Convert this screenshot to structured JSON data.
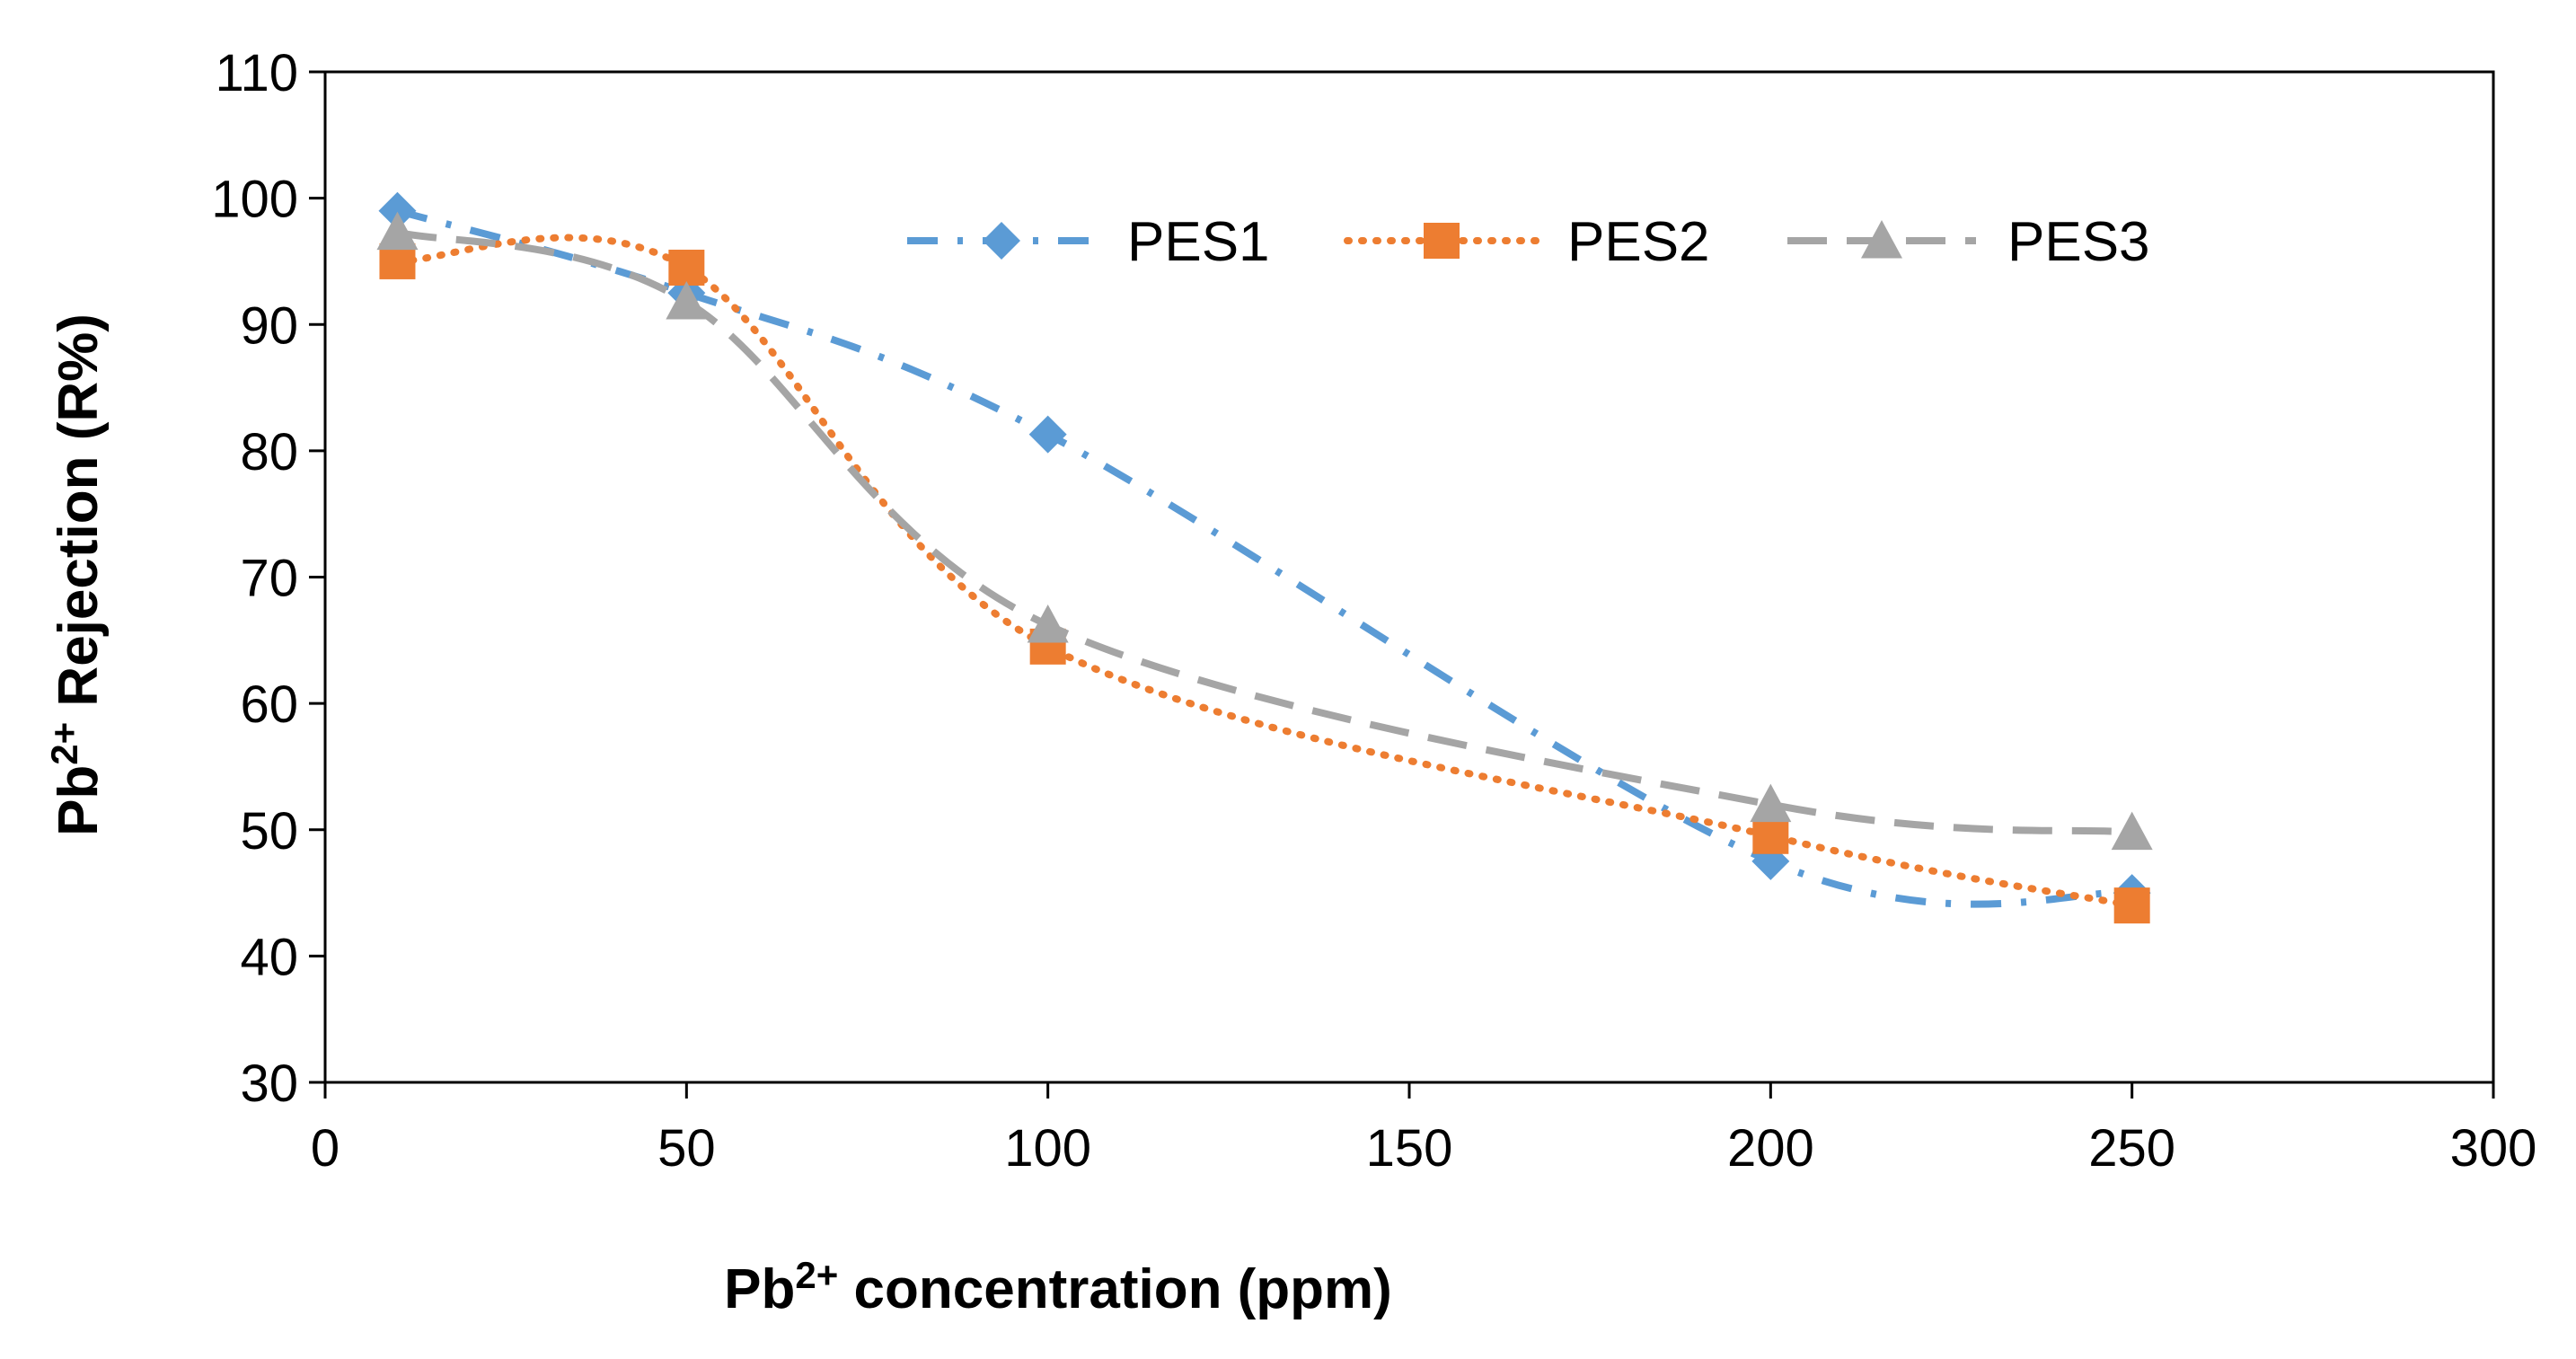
{
  "chart_data": {
    "type": "line",
    "title": "",
    "xlabel": {
      "base": "Pb",
      "sup": "2+",
      "rest": " concentration (ppm)"
    },
    "ylabel": {
      "base": "Pb",
      "sup": "2+",
      "rest": " Rejection (R%)"
    },
    "xlim": [
      0,
      300
    ],
    "ylim": [
      30,
      110
    ],
    "xticks": [
      "0",
      "50",
      "100",
      "150",
      "200",
      "250",
      "300"
    ],
    "yticks": [
      "30",
      "40",
      "50",
      "60",
      "70",
      "80",
      "90",
      "100",
      "110"
    ],
    "grid": false,
    "legend_position": "top-right",
    "x": [
      10,
      50,
      100,
      200,
      250
    ],
    "series": [
      {
        "name": "PES1",
        "values": [
          99,
          92.5,
          81.3,
          47.5,
          45
        ],
        "color": "#5B9BD5",
        "marker": "diamond",
        "line_style": "dash-dot",
        "smooth": true
      },
      {
        "name": "PES2",
        "values": [
          95,
          94.5,
          64.5,
          49.5,
          44
        ],
        "color": "#ED7D31",
        "marker": "square",
        "line_style": "dotted",
        "smooth": true
      },
      {
        "name": "PES3",
        "values": [
          97.3,
          91.8,
          66.2,
          52,
          49.8
        ],
        "color": "#A5A5A5",
        "marker": "triangle",
        "line_style": "dashed",
        "smooth": true
      }
    ]
  }
}
